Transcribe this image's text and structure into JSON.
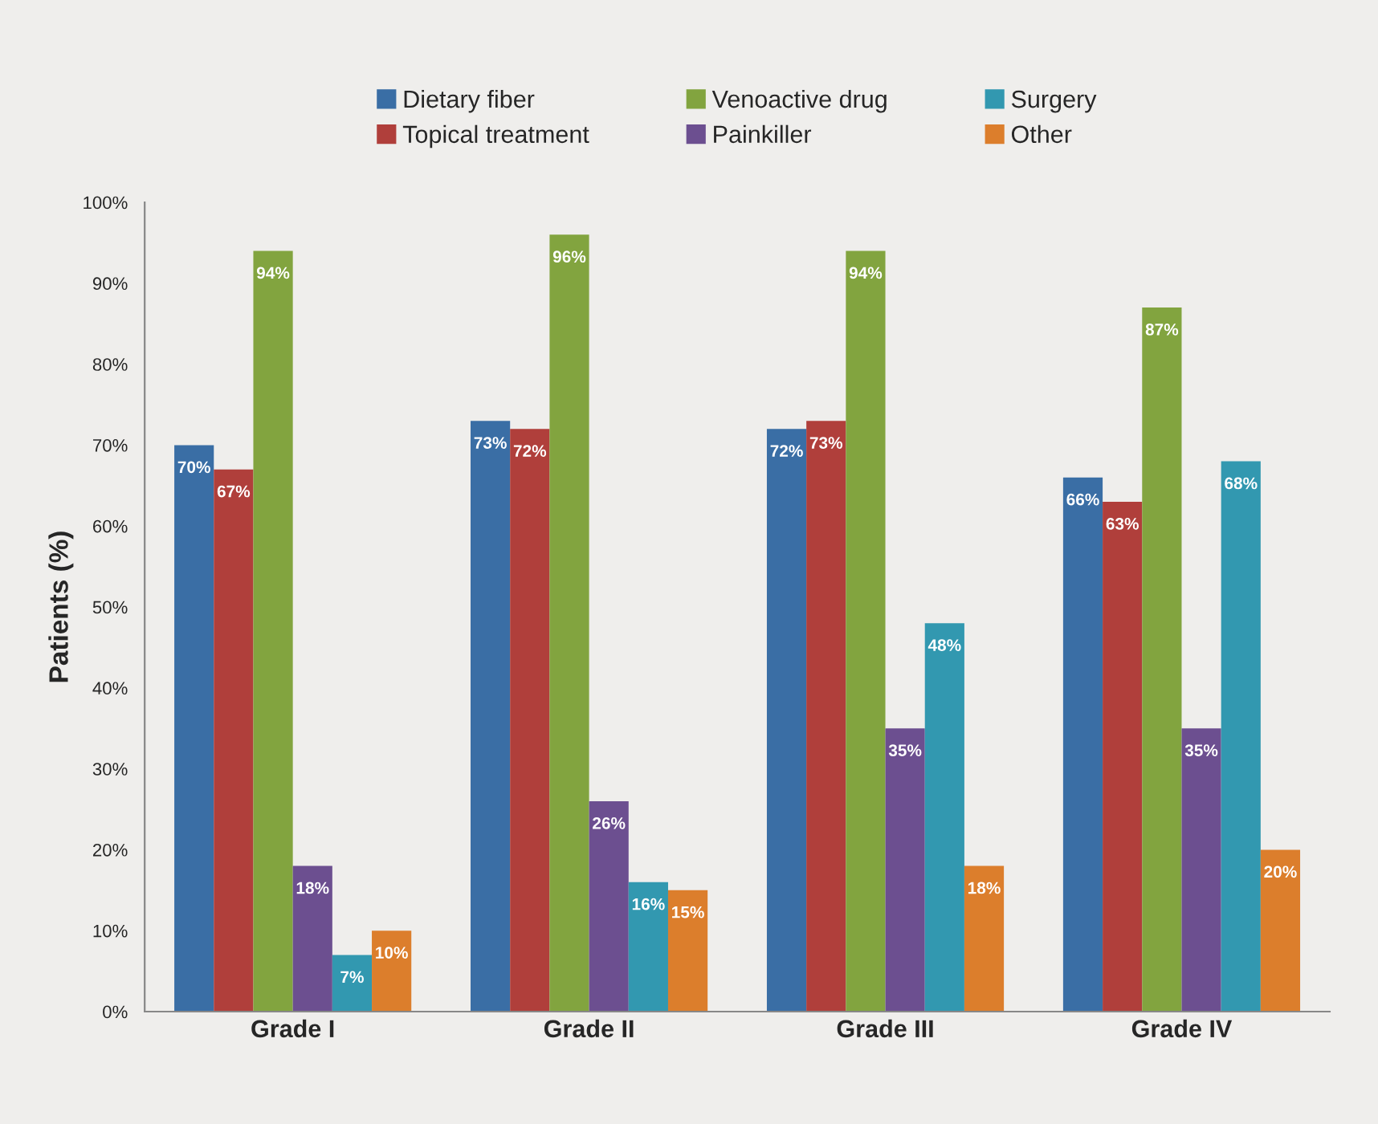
{
  "chart_data": {
    "type": "bar",
    "ylabel": "Patients (%)",
    "categories": [
      "Grade I",
      "Grade II",
      "Grade III",
      "Grade IV"
    ],
    "series": [
      {
        "name": "Dietary fiber",
        "color": "#3a6ea5",
        "values": [
          70,
          73,
          72,
          66
        ],
        "value_labels": [
          "70%",
          "73%",
          "72%",
          "66%"
        ]
      },
      {
        "name": "Topical treatment",
        "color": "#b03f3b",
        "values": [
          67,
          72,
          73,
          63
        ],
        "value_labels": [
          "67%",
          "72%",
          "73%",
          "63%"
        ]
      },
      {
        "name": "Venoactive drug",
        "color": "#82a43f",
        "values": [
          94,
          96,
          94,
          87
        ],
        "value_labels": [
          "94%",
          "96%",
          "94%",
          "87%"
        ]
      },
      {
        "name": "Painkiller",
        "color": "#6c4f90",
        "values": [
          18,
          26,
          35,
          35
        ],
        "value_labels": [
          "18%",
          "26%",
          "35%",
          "35%"
        ]
      },
      {
        "name": "Surgery",
        "color": "#3298b0",
        "values": [
          7,
          16,
          48,
          68
        ],
        "value_labels": [
          "7%",
          "16%",
          "48%",
          "68%"
        ]
      },
      {
        "name": "Other",
        "color": "#dc7e2c",
        "values": [
          10,
          15,
          18,
          20
        ],
        "value_labels": [
          "10%",
          "15%",
          "18%",
          "20%"
        ]
      }
    ],
    "ylim": [
      0,
      100
    ],
    "yticks": [
      {
        "value": 0,
        "label": "0%"
      },
      {
        "value": 10,
        "label": "10%"
      },
      {
        "value": 20,
        "label": "20%"
      },
      {
        "value": 30,
        "label": "30%"
      },
      {
        "value": 40,
        "label": "40%"
      },
      {
        "value": 50,
        "label": "50%"
      },
      {
        "value": 60,
        "label": "60%"
      },
      {
        "value": 70,
        "label": "70%"
      },
      {
        "value": 80,
        "label": "80%"
      },
      {
        "value": 90,
        "label": "90%"
      },
      {
        "value": 100,
        "label": "100%"
      }
    ],
    "grid": false,
    "legend": "top"
  }
}
